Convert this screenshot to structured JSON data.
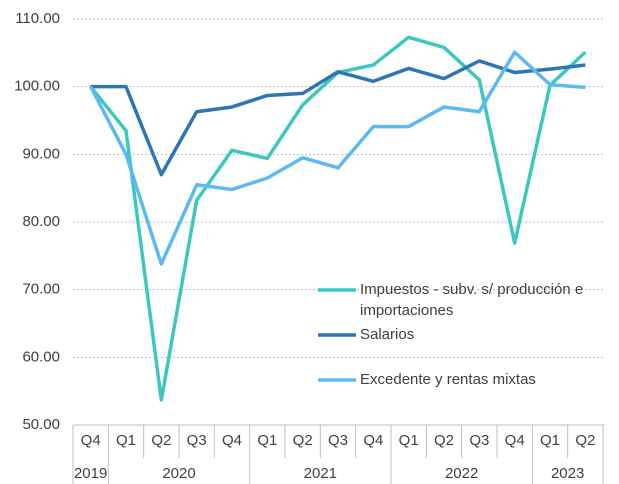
{
  "chart_data": {
    "type": "line",
    "categories": [
      "Q4",
      "Q1",
      "Q2",
      "Q3",
      "Q4",
      "Q1",
      "Q2",
      "Q3",
      "Q4",
      "Q1",
      "Q2",
      "Q3",
      "Q4",
      "Q1",
      "Q2"
    ],
    "category_groups": [
      {
        "label": "2019",
        "count": 1
      },
      {
        "label": "2020",
        "count": 4
      },
      {
        "label": "2021",
        "count": 4
      },
      {
        "label": "2022",
        "count": 4
      },
      {
        "label": "2023",
        "count": 2
      }
    ],
    "series": [
      {
        "name": "Impuestos - subv. s/ producción e importaciones",
        "color": "#3cc9bd",
        "values": [
          100,
          93.5,
          53.7,
          83.2,
          90.6,
          89.4,
          97.3,
          102.1,
          103.2,
          107.3,
          105.8,
          101,
          76.9,
          100.2,
          105.1
        ]
      },
      {
        "name": "Salarios",
        "color": "#2e75b6",
        "values": [
          100,
          100,
          87,
          96.3,
          97,
          98.7,
          99,
          102.2,
          100.8,
          102.7,
          101.2,
          103.8,
          102.1,
          102.6,
          103.2
        ]
      },
      {
        "name": "Excedente y rentas mixtas",
        "color": "#5cb9f2",
        "values": [
          100,
          90,
          73.8,
          85.5,
          84.8,
          86.5,
          89.5,
          88,
          94.1,
          94.1,
          97,
          96.3,
          105.1,
          100.3,
          99.9
        ]
      }
    ],
    "ylim": [
      50,
      110
    ],
    "yticks": [
      {
        "value": 50,
        "label": "50.00"
      },
      {
        "value": 60,
        "label": "60.00"
      },
      {
        "value": 70,
        "label": "70.00"
      },
      {
        "value": 80,
        "label": "80.00"
      },
      {
        "value": 90,
        "label": "90.00"
      },
      {
        "value": 100,
        "label": "100.00"
      },
      {
        "value": 110,
        "label": "110.00"
      }
    ],
    "grid": true
  }
}
